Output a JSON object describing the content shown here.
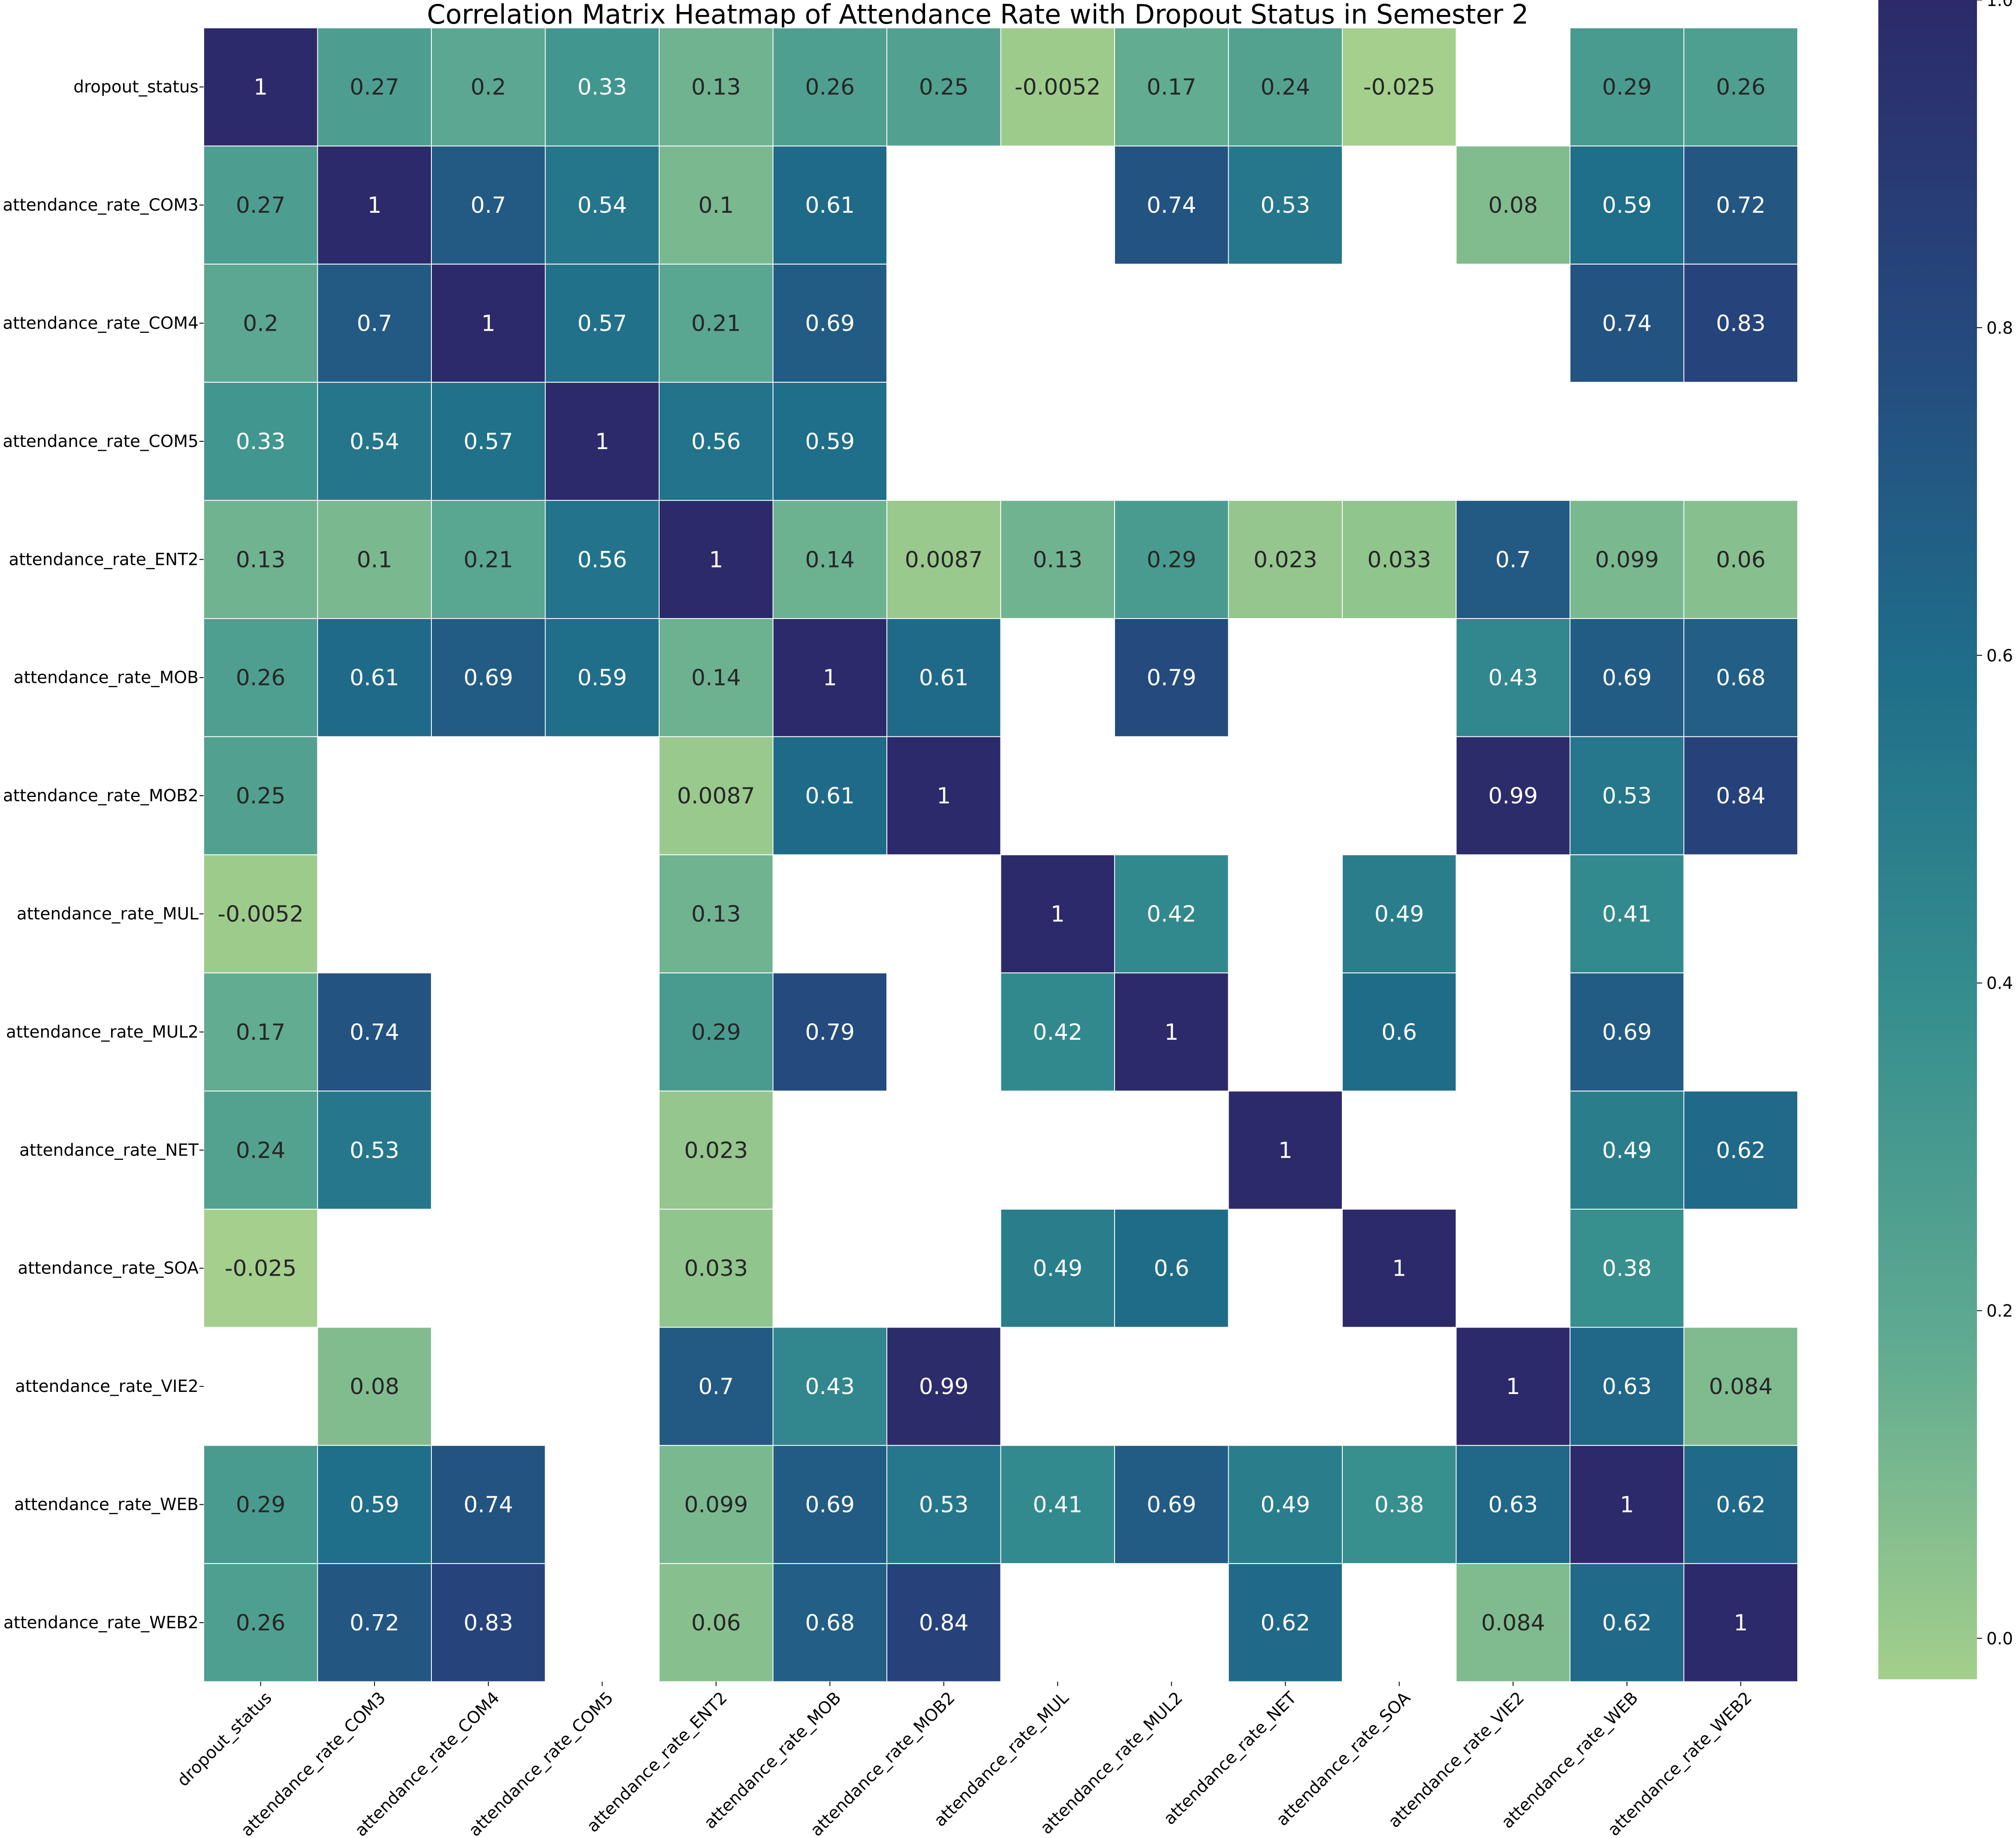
{
  "chart_data": {
    "type": "heatmap",
    "title": "Correlation Matrix Heatmap of Attendance Rate with Dropout Status in Semester 2",
    "labels": [
      "dropout_status",
      "attendance_rate_COM3",
      "attendance_rate_COM4",
      "attendance_rate_COM5",
      "attendance_rate_ENT2",
      "attendance_rate_MOB",
      "attendance_rate_MOB2",
      "attendance_rate_MUL",
      "attendance_rate_MUL2",
      "attendance_rate_NET",
      "attendance_rate_SOA",
      "attendance_rate_VIE2",
      "attendance_rate_WEB",
      "attendance_rate_WEB2"
    ],
    "display": [
      [
        "1",
        "0.27",
        "0.2",
        "0.33",
        "0.13",
        "0.26",
        "0.25",
        "-0.0052",
        "0.17",
        "0.24",
        "-0.025",
        null,
        "0.29",
        "0.26"
      ],
      [
        "0.27",
        "1",
        "0.7",
        "0.54",
        "0.1",
        "0.61",
        null,
        null,
        "0.74",
        "0.53",
        null,
        "0.08",
        "0.59",
        "0.72"
      ],
      [
        "0.2",
        "0.7",
        "1",
        "0.57",
        "0.21",
        "0.69",
        null,
        null,
        null,
        null,
        null,
        null,
        "0.74",
        "0.83"
      ],
      [
        "0.33",
        "0.54",
        "0.57",
        "1",
        "0.56",
        "0.59",
        null,
        null,
        null,
        null,
        null,
        null,
        null,
        null
      ],
      [
        "0.13",
        "0.1",
        "0.21",
        "0.56",
        "1",
        "0.14",
        "0.0087",
        "0.13",
        "0.29",
        "0.023",
        "0.033",
        "0.7",
        "0.099",
        "0.06"
      ],
      [
        "0.26",
        "0.61",
        "0.69",
        "0.59",
        "0.14",
        "1",
        "0.61",
        null,
        "0.79",
        null,
        null,
        "0.43",
        "0.69",
        "0.68"
      ],
      [
        "0.25",
        null,
        null,
        null,
        "0.0087",
        "0.61",
        "1",
        null,
        null,
        null,
        null,
        "0.99",
        "0.53",
        "0.84"
      ],
      [
        "-0.0052",
        null,
        null,
        null,
        "0.13",
        null,
        null,
        "1",
        "0.42",
        null,
        "0.49",
        null,
        "0.41",
        null
      ],
      [
        "0.17",
        "0.74",
        null,
        null,
        "0.29",
        "0.79",
        null,
        "0.42",
        "1",
        null,
        "0.6",
        null,
        "0.69",
        null
      ],
      [
        "0.24",
        "0.53",
        null,
        null,
        "0.023",
        null,
        null,
        null,
        null,
        "1",
        null,
        null,
        "0.49",
        "0.62"
      ],
      [
        "-0.025",
        null,
        null,
        null,
        "0.033",
        null,
        null,
        "0.49",
        "0.6",
        null,
        "1",
        null,
        "0.38",
        null
      ],
      [
        null,
        "0.08",
        null,
        null,
        "0.7",
        "0.43",
        "0.99",
        null,
        null,
        null,
        null,
        "1",
        "0.63",
        "0.084"
      ],
      [
        "0.29",
        "0.59",
        "0.74",
        null,
        "0.099",
        "0.69",
        "0.53",
        "0.41",
        "0.69",
        "0.49",
        "0.38",
        "0.63",
        "1",
        "0.62"
      ],
      [
        "0.26",
        "0.72",
        "0.83",
        null,
        "0.06",
        "0.68",
        "0.84",
        null,
        null,
        "0.62",
        null,
        "0.084",
        "0.62",
        "1"
      ]
    ],
    "colorbar": {
      "vmin": -0.025,
      "vmax": 1.0,
      "ticks": [
        "0.0",
        "0.2",
        "0.4",
        "0.6",
        "0.8",
        "1.0"
      ],
      "colormap": "crest_r",
      "stops": [
        "#a4cf8c",
        "#5faa91",
        "#368e8e",
        "#1f6e8a",
        "#25497e",
        "#2c2a6a"
      ]
    },
    "grid": false
  }
}
